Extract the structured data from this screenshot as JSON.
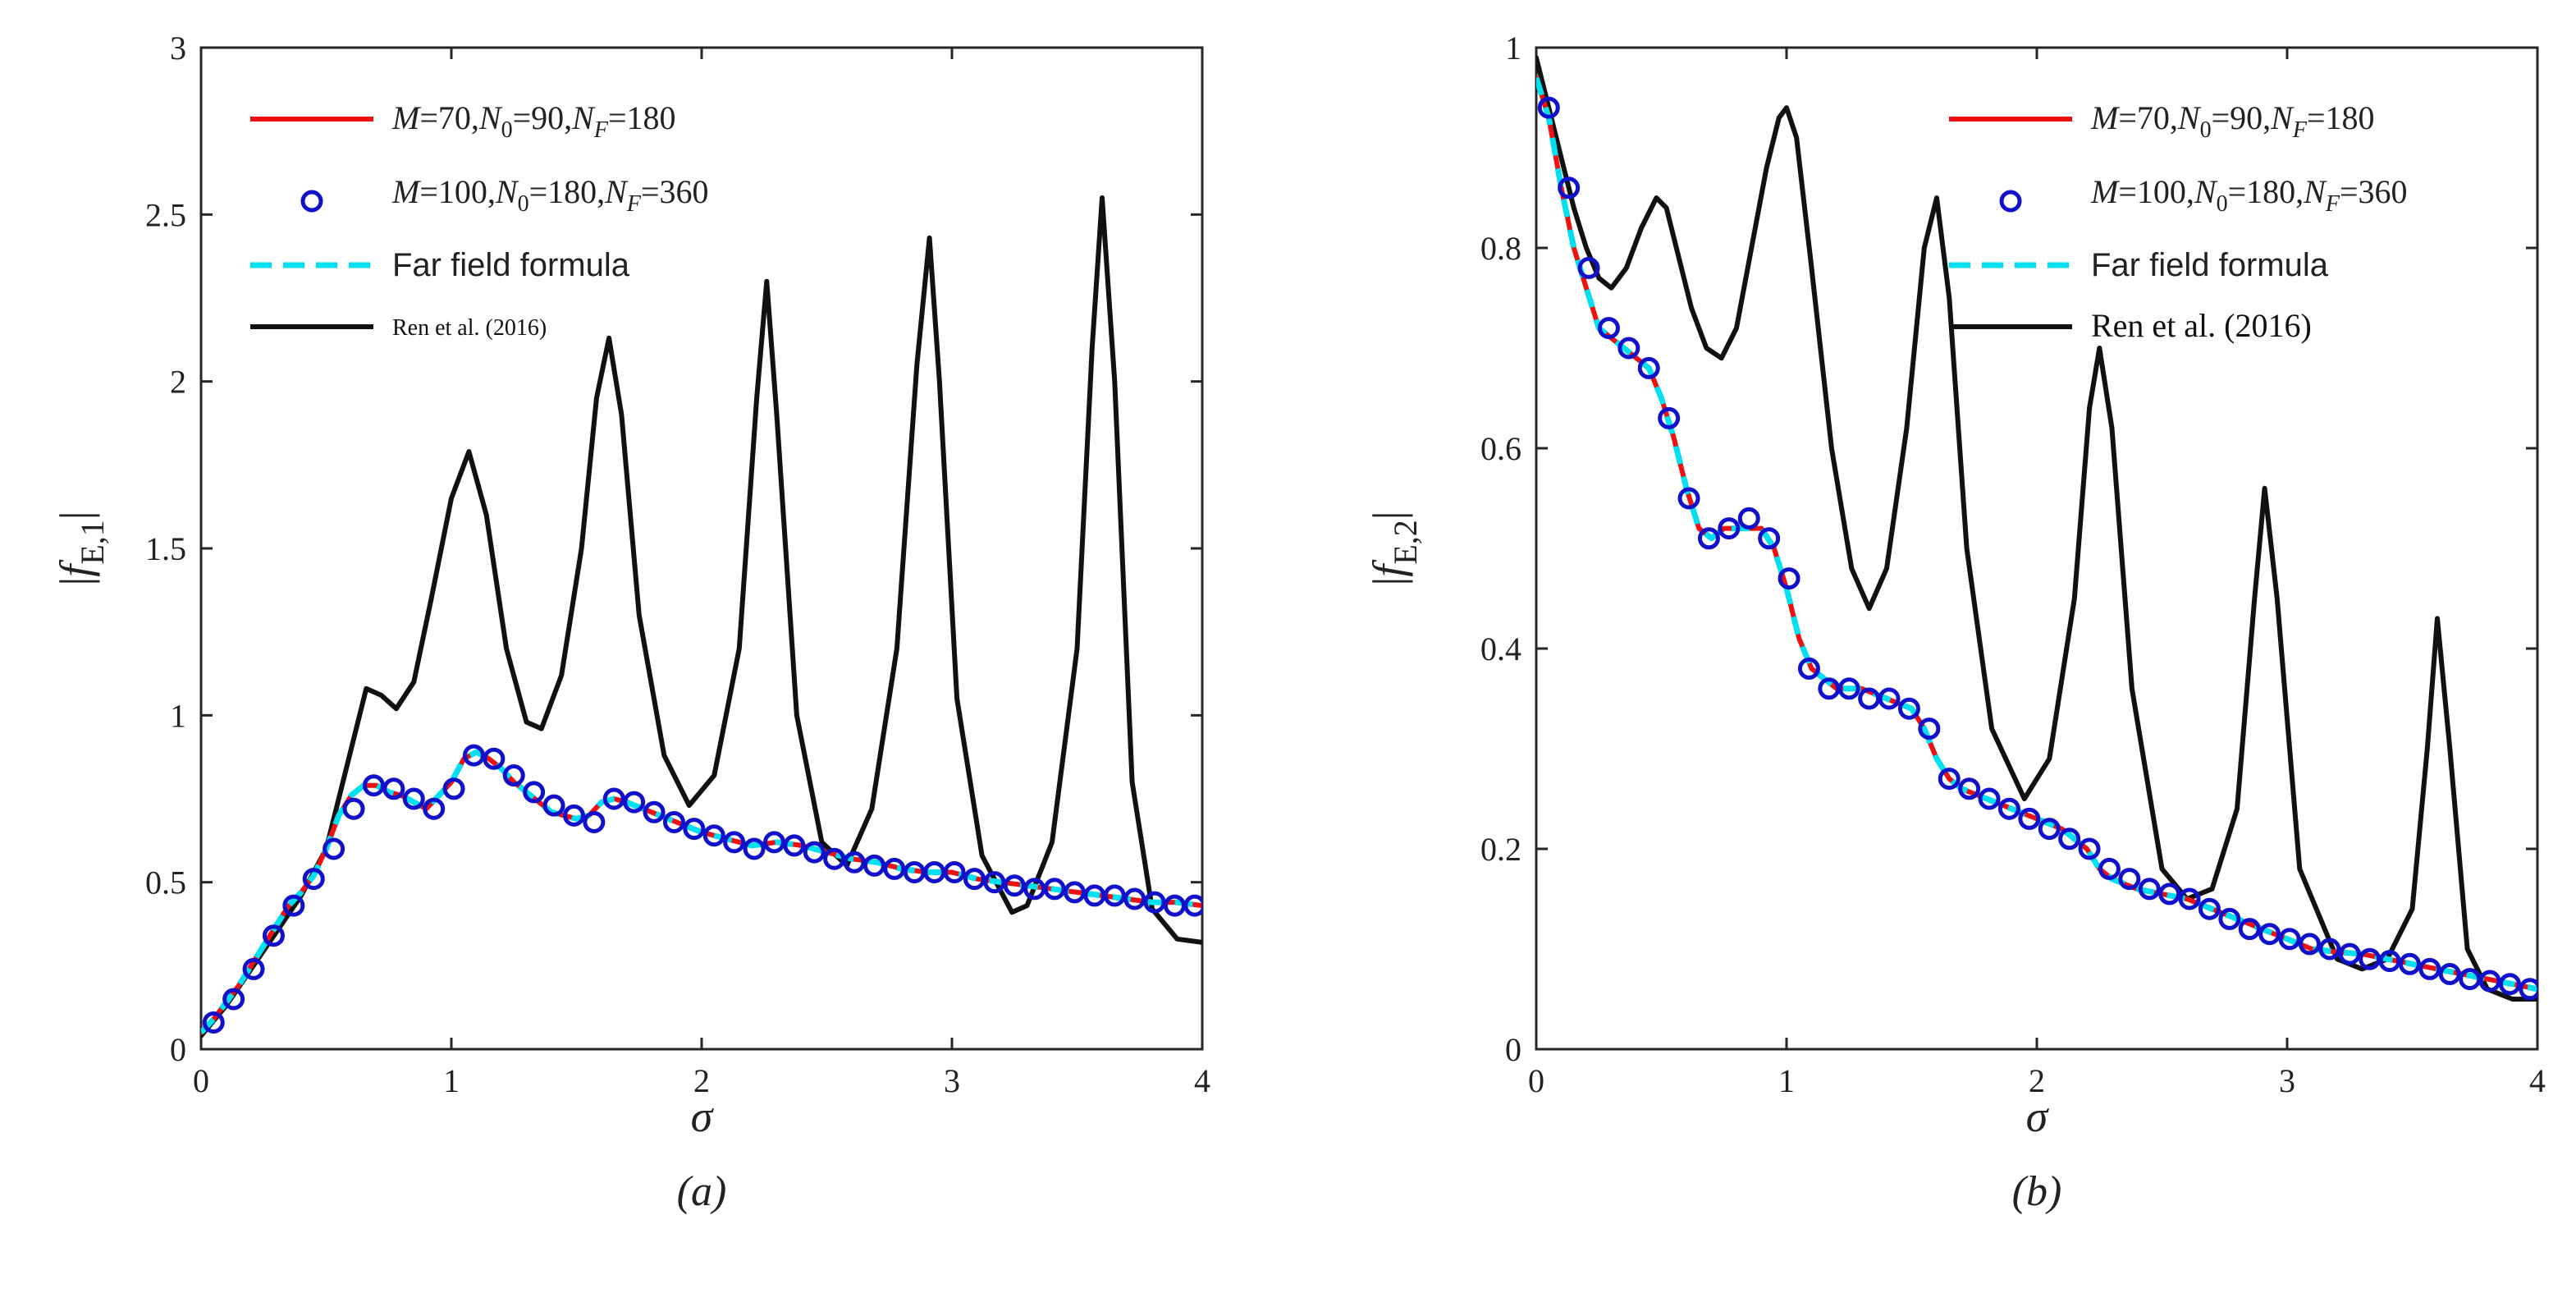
{
  "figure": {
    "panels": [
      "a",
      "b"
    ]
  },
  "chart_data": [
    {
      "id": "a",
      "type": "line",
      "panel_label": "(a)",
      "xlabel": "σ",
      "ylabel": "|f_{E,1}|",
      "ylabel_main": "f",
      "ylabel_sub": "E,1",
      "xlim": [
        0,
        4
      ],
      "ylim": [
        0,
        3
      ],
      "xticks": [
        0,
        1,
        2,
        3,
        4
      ],
      "xtick_labels": [
        "0",
        "1",
        "2",
        "3",
        "4"
      ],
      "yticks": [
        0,
        0.5,
        1,
        1.5,
        2,
        2.5,
        3
      ],
      "ytick_labels": [
        "0",
        "0.5",
        "1",
        "1.5",
        "2",
        "2.5",
        "3"
      ],
      "legend_position": "top-left",
      "legend": [
        {
          "key": "m70",
          "text": "M=70,N0=90,NF=180",
          "M": "70",
          "N0": "90",
          "NF": "180"
        },
        {
          "key": "m100",
          "text": "M=100,N0=180,NF=360",
          "M": "100",
          "N0": "180",
          "NF": "360"
        },
        {
          "key": "far",
          "text": "Far field formula"
        },
        {
          "key": "ren",
          "text": "Ren et al. (2016)"
        }
      ],
      "series": [
        {
          "name": "M=70,N0=90,NF=180",
          "style": "solid",
          "color": "#ee1111",
          "x": [
            0,
            0.05,
            0.1,
            0.15,
            0.2,
            0.25,
            0.3,
            0.35,
            0.4,
            0.45,
            0.5,
            0.55,
            0.6,
            0.65,
            0.7,
            0.75,
            0.8,
            0.85,
            0.9,
            0.95,
            1.0,
            1.05,
            1.1,
            1.15,
            1.2,
            1.25,
            1.3,
            1.35,
            1.4,
            1.45,
            1.5,
            1.55,
            1.6,
            1.65,
            1.7,
            1.8,
            1.9,
            2.0,
            2.1,
            2.2,
            2.3,
            2.4,
            2.5,
            2.6,
            2.7,
            2.8,
            2.9,
            3.0,
            3.1,
            3.2,
            3.3,
            3.4,
            3.5,
            3.6,
            3.7,
            3.8,
            3.9,
            4.0
          ],
          "y": [
            0.05,
            0.09,
            0.14,
            0.19,
            0.25,
            0.31,
            0.37,
            0.43,
            0.47,
            0.52,
            0.6,
            0.7,
            0.76,
            0.79,
            0.79,
            0.77,
            0.76,
            0.74,
            0.72,
            0.76,
            0.8,
            0.87,
            0.89,
            0.87,
            0.84,
            0.8,
            0.77,
            0.74,
            0.71,
            0.7,
            0.69,
            0.7,
            0.74,
            0.75,
            0.74,
            0.71,
            0.68,
            0.65,
            0.63,
            0.61,
            0.62,
            0.61,
            0.59,
            0.57,
            0.56,
            0.54,
            0.53,
            0.53,
            0.51,
            0.5,
            0.49,
            0.48,
            0.47,
            0.46,
            0.45,
            0.44,
            0.44,
            0.43
          ]
        },
        {
          "name": "M=100,N0=180,NF=360",
          "style": "circle",
          "color": "#1111cc",
          "x": [
            0.05,
            0.13,
            0.21,
            0.29,
            0.37,
            0.45,
            0.53,
            0.61,
            0.69,
            0.77,
            0.85,
            0.93,
            1.01,
            1.09,
            1.17,
            1.25,
            1.33,
            1.41,
            1.49,
            1.57,
            1.65,
            1.73,
            1.81,
            1.89,
            1.97,
            2.05,
            2.13,
            2.21,
            2.29,
            2.37,
            2.45,
            2.53,
            2.61,
            2.69,
            2.77,
            2.85,
            2.93,
            3.01,
            3.09,
            3.17,
            3.25,
            3.33,
            3.41,
            3.49,
            3.57,
            3.65,
            3.73,
            3.81,
            3.89,
            3.97
          ],
          "y": [
            0.08,
            0.15,
            0.24,
            0.34,
            0.43,
            0.51,
            0.6,
            0.72,
            0.79,
            0.78,
            0.75,
            0.72,
            0.78,
            0.88,
            0.87,
            0.82,
            0.77,
            0.73,
            0.7,
            0.68,
            0.75,
            0.74,
            0.71,
            0.68,
            0.66,
            0.64,
            0.62,
            0.6,
            0.62,
            0.61,
            0.59,
            0.57,
            0.56,
            0.55,
            0.54,
            0.53,
            0.53,
            0.53,
            0.51,
            0.5,
            0.49,
            0.48,
            0.48,
            0.47,
            0.46,
            0.46,
            0.45,
            0.44,
            0.43,
            0.43
          ]
        },
        {
          "name": "Far field formula",
          "style": "dashed",
          "color": "#00e0f0",
          "x": [
            0,
            0.05,
            0.1,
            0.15,
            0.2,
            0.25,
            0.3,
            0.35,
            0.4,
            0.45,
            0.5,
            0.55,
            0.6,
            0.65,
            0.7,
            0.75,
            0.8,
            0.85,
            0.9,
            0.95,
            1.0,
            1.05,
            1.1,
            1.15,
            1.2,
            1.25,
            1.3,
            1.35,
            1.4,
            1.45,
            1.5,
            1.55,
            1.6,
            1.65,
            1.7,
            1.8,
            1.9,
            2.0,
            2.1,
            2.2,
            2.3,
            2.4,
            2.5,
            2.6,
            2.7,
            2.8,
            2.9,
            3.0,
            3.1,
            3.2,
            3.3,
            3.4,
            3.5,
            3.6,
            3.7,
            3.8,
            3.9,
            4.0
          ],
          "y": [
            0.05,
            0.09,
            0.14,
            0.19,
            0.25,
            0.31,
            0.37,
            0.43,
            0.47,
            0.52,
            0.6,
            0.7,
            0.76,
            0.79,
            0.79,
            0.77,
            0.76,
            0.74,
            0.72,
            0.76,
            0.8,
            0.87,
            0.89,
            0.87,
            0.84,
            0.8,
            0.77,
            0.74,
            0.71,
            0.7,
            0.69,
            0.7,
            0.74,
            0.75,
            0.74,
            0.71,
            0.68,
            0.65,
            0.63,
            0.61,
            0.62,
            0.61,
            0.59,
            0.57,
            0.56,
            0.54,
            0.53,
            0.53,
            0.51,
            0.5,
            0.49,
            0.48,
            0.47,
            0.46,
            0.45,
            0.44,
            0.44,
            0.43
          ]
        },
        {
          "name": "Ren et al. (2016)",
          "style": "solid",
          "color": "#111111",
          "x": [
            0,
            0.1,
            0.2,
            0.3,
            0.4,
            0.5,
            0.6,
            0.66,
            0.72,
            0.78,
            0.85,
            0.92,
            1.0,
            1.07,
            1.14,
            1.22,
            1.3,
            1.36,
            1.44,
            1.52,
            1.58,
            1.63,
            1.68,
            1.75,
            1.85,
            1.95,
            2.05,
            2.15,
            2.22,
            2.26,
            2.3,
            2.38,
            2.48,
            2.58,
            2.68,
            2.78,
            2.86,
            2.91,
            2.95,
            3.02,
            3.12,
            3.24,
            3.3,
            3.4,
            3.5,
            3.56,
            3.6,
            3.65,
            3.72,
            3.8,
            3.9,
            4.0
          ],
          "y": [
            0.04,
            0.13,
            0.24,
            0.35,
            0.46,
            0.6,
            0.9,
            1.08,
            1.06,
            1.02,
            1.1,
            1.35,
            1.65,
            1.79,
            1.6,
            1.2,
            0.98,
            0.96,
            1.12,
            1.5,
            1.95,
            2.13,
            1.9,
            1.3,
            0.88,
            0.73,
            0.82,
            1.2,
            1.95,
            2.3,
            1.9,
            1.0,
            0.62,
            0.55,
            0.72,
            1.2,
            2.05,
            2.43,
            2.0,
            1.05,
            0.58,
            0.41,
            0.43,
            0.62,
            1.2,
            2.1,
            2.55,
            2.0,
            0.8,
            0.42,
            0.33,
            0.32
          ]
        }
      ]
    },
    {
      "id": "b",
      "type": "line",
      "panel_label": "(b)",
      "xlabel": "σ",
      "ylabel": "|f_{E,2}|",
      "ylabel_main": "f",
      "ylabel_sub": "E,2",
      "xlim": [
        0,
        4
      ],
      "ylim": [
        0,
        1
      ],
      "xticks": [
        0,
        1,
        2,
        3,
        4
      ],
      "xtick_labels": [
        "0",
        "1",
        "2",
        "3",
        "4"
      ],
      "yticks": [
        0,
        0.2,
        0.4,
        0.6,
        0.8,
        1
      ],
      "ytick_labels": [
        "0",
        "0.2",
        "0.4",
        "0.6",
        "0.8",
        "1"
      ],
      "legend_position": "top-right",
      "legend": [
        {
          "key": "m70",
          "text": "M=70,N0=90,NF=180",
          "M": "70",
          "N0": "90",
          "NF": "180"
        },
        {
          "key": "m100",
          "text": "M=100,N0=180,NF=360",
          "M": "100",
          "N0": "180",
          "NF": "360"
        },
        {
          "key": "far",
          "text": "Far field formula"
        },
        {
          "key": "ren",
          "text": "Ren et al. (2016)"
        }
      ],
      "series": [
        {
          "name": "M=70,N0=90,NF=180",
          "style": "solid",
          "color": "#ee1111",
          "x": [
            0,
            0.05,
            0.1,
            0.15,
            0.2,
            0.25,
            0.3,
            0.35,
            0.4,
            0.45,
            0.5,
            0.55,
            0.6,
            0.65,
            0.7,
            0.75,
            0.8,
            0.85,
            0.9,
            0.95,
            1.0,
            1.05,
            1.1,
            1.15,
            1.2,
            1.3,
            1.4,
            1.5,
            1.55,
            1.6,
            1.65,
            1.7,
            1.8,
            1.9,
            2.0,
            2.1,
            2.2,
            2.25,
            2.3,
            2.4,
            2.5,
            2.6,
            2.7,
            2.8,
            2.9,
            3.0,
            3.1,
            3.2,
            3.3,
            3.4,
            3.5,
            3.6,
            3.7,
            3.8,
            3.9,
            4.0
          ],
          "y": [
            0.97,
            0.93,
            0.86,
            0.8,
            0.76,
            0.72,
            0.71,
            0.7,
            0.69,
            0.68,
            0.65,
            0.61,
            0.56,
            0.52,
            0.51,
            0.52,
            0.52,
            0.52,
            0.52,
            0.5,
            0.46,
            0.41,
            0.38,
            0.37,
            0.36,
            0.36,
            0.35,
            0.34,
            0.32,
            0.29,
            0.27,
            0.26,
            0.25,
            0.24,
            0.23,
            0.22,
            0.2,
            0.18,
            0.17,
            0.16,
            0.155,
            0.15,
            0.14,
            0.13,
            0.12,
            0.11,
            0.1,
            0.097,
            0.095,
            0.09,
            0.085,
            0.08,
            0.075,
            0.07,
            0.065,
            0.06
          ]
        },
        {
          "name": "M=100,N0=180,NF=360",
          "style": "circle",
          "color": "#1111cc",
          "x": [
            0.05,
            0.13,
            0.21,
            0.29,
            0.37,
            0.45,
            0.53,
            0.61,
            0.69,
            0.77,
            0.85,
            0.93,
            1.01,
            1.09,
            1.17,
            1.25,
            1.33,
            1.41,
            1.49,
            1.57,
            1.65,
            1.73,
            1.81,
            1.89,
            1.97,
            2.05,
            2.13,
            2.21,
            2.29,
            2.37,
            2.45,
            2.53,
            2.61,
            2.69,
            2.77,
            2.85,
            2.93,
            3.01,
            3.09,
            3.17,
            3.25,
            3.33,
            3.41,
            3.49,
            3.57,
            3.65,
            3.73,
            3.81,
            3.89,
            3.97
          ],
          "y": [
            0.94,
            0.86,
            0.78,
            0.72,
            0.7,
            0.68,
            0.63,
            0.55,
            0.51,
            0.52,
            0.53,
            0.51,
            0.47,
            0.38,
            0.36,
            0.36,
            0.35,
            0.35,
            0.34,
            0.32,
            0.27,
            0.26,
            0.25,
            0.24,
            0.23,
            0.22,
            0.21,
            0.2,
            0.18,
            0.17,
            0.16,
            0.155,
            0.15,
            0.14,
            0.13,
            0.12,
            0.115,
            0.11,
            0.105,
            0.1,
            0.095,
            0.09,
            0.088,
            0.085,
            0.08,
            0.075,
            0.07,
            0.068,
            0.065,
            0.06
          ]
        },
        {
          "name": "Far field formula",
          "style": "dashed",
          "color": "#00e0f0",
          "x": [
            0,
            0.05,
            0.1,
            0.15,
            0.2,
            0.25,
            0.3,
            0.35,
            0.4,
            0.45,
            0.5,
            0.55,
            0.6,
            0.65,
            0.7,
            0.75,
            0.8,
            0.85,
            0.9,
            0.95,
            1.0,
            1.05,
            1.1,
            1.15,
            1.2,
            1.3,
            1.4,
            1.5,
            1.55,
            1.6,
            1.65,
            1.7,
            1.8,
            1.9,
            2.0,
            2.1,
            2.2,
            2.25,
            2.3,
            2.4,
            2.5,
            2.6,
            2.7,
            2.8,
            2.9,
            3.0,
            3.1,
            3.2,
            3.3,
            3.4,
            3.5,
            3.6,
            3.7,
            3.8,
            3.9,
            4.0
          ],
          "y": [
            0.97,
            0.93,
            0.86,
            0.8,
            0.76,
            0.72,
            0.71,
            0.7,
            0.69,
            0.68,
            0.65,
            0.61,
            0.56,
            0.52,
            0.51,
            0.52,
            0.52,
            0.52,
            0.52,
            0.5,
            0.46,
            0.41,
            0.38,
            0.37,
            0.36,
            0.36,
            0.35,
            0.34,
            0.32,
            0.29,
            0.27,
            0.26,
            0.25,
            0.24,
            0.23,
            0.22,
            0.2,
            0.18,
            0.17,
            0.16,
            0.155,
            0.15,
            0.14,
            0.13,
            0.12,
            0.11,
            0.1,
            0.097,
            0.095,
            0.09,
            0.085,
            0.08,
            0.075,
            0.07,
            0.065,
            0.06
          ]
        },
        {
          "name": "Ren et al. (2016)",
          "style": "solid",
          "color": "#111111",
          "x": [
            0,
            0.05,
            0.1,
            0.15,
            0.2,
            0.25,
            0.3,
            0.36,
            0.42,
            0.48,
            0.52,
            0.56,
            0.62,
            0.68,
            0.74,
            0.8,
            0.86,
            0.92,
            0.97,
            1.0,
            1.04,
            1.1,
            1.18,
            1.26,
            1.33,
            1.4,
            1.48,
            1.55,
            1.6,
            1.65,
            1.72,
            1.82,
            1.95,
            2.05,
            2.15,
            2.21,
            2.25,
            2.3,
            2.38,
            2.5,
            2.6,
            2.7,
            2.8,
            2.87,
            2.91,
            2.96,
            3.05,
            3.2,
            3.3,
            3.4,
            3.5,
            3.56,
            3.6,
            3.65,
            3.72,
            3.8,
            3.9,
            4.0
          ],
          "y": [
            0.99,
            0.94,
            0.89,
            0.84,
            0.8,
            0.77,
            0.76,
            0.78,
            0.82,
            0.85,
            0.84,
            0.8,
            0.74,
            0.7,
            0.69,
            0.72,
            0.8,
            0.88,
            0.93,
            0.94,
            0.91,
            0.78,
            0.6,
            0.48,
            0.44,
            0.48,
            0.62,
            0.8,
            0.85,
            0.75,
            0.5,
            0.32,
            0.25,
            0.29,
            0.45,
            0.64,
            0.7,
            0.62,
            0.36,
            0.18,
            0.15,
            0.16,
            0.24,
            0.45,
            0.56,
            0.45,
            0.18,
            0.09,
            0.08,
            0.09,
            0.14,
            0.3,
            0.43,
            0.3,
            0.1,
            0.06,
            0.05,
            0.05
          ]
        }
      ]
    }
  ]
}
